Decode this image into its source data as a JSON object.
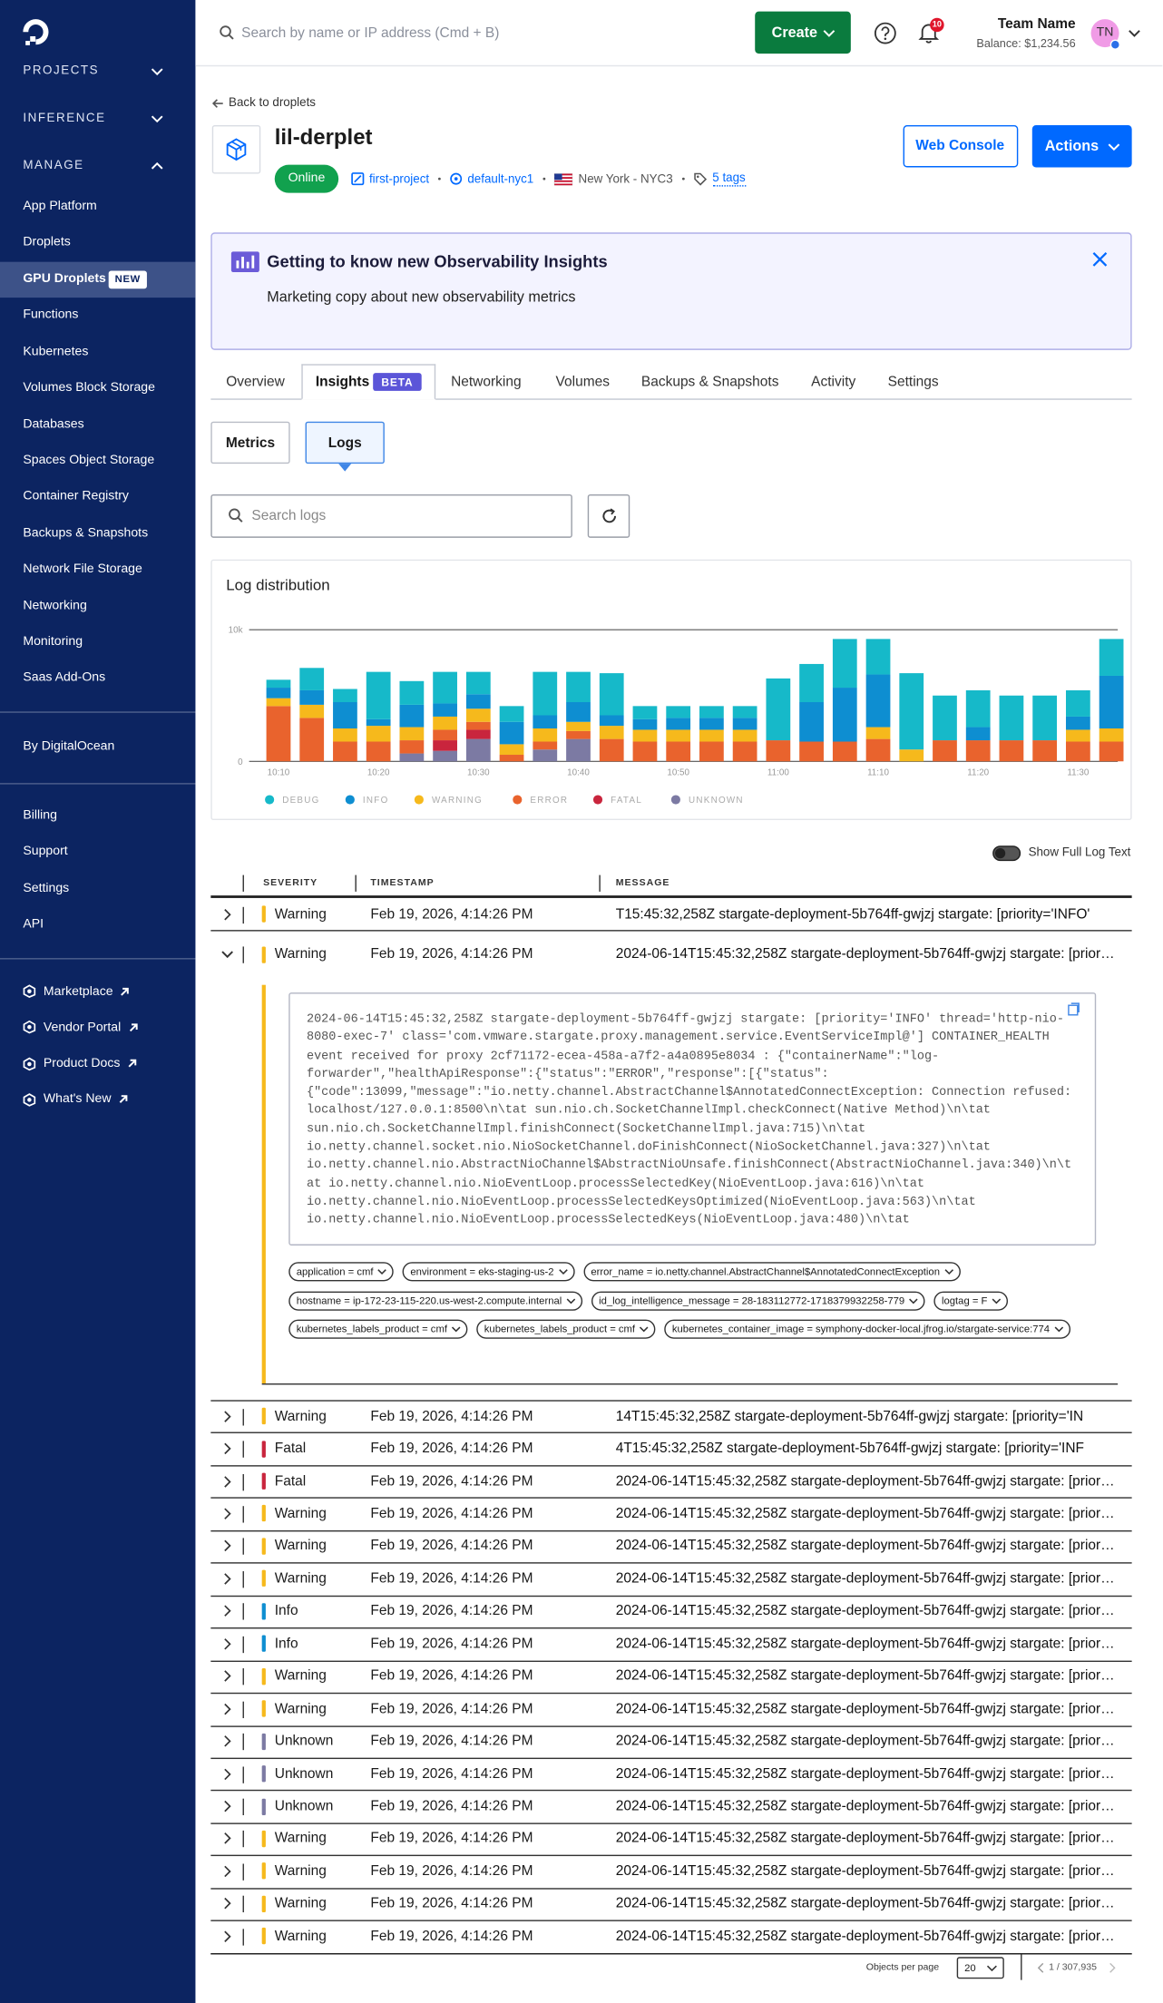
{
  "sidebar": {
    "sections": [
      "PROJECTS",
      "INFERENCE",
      "MANAGE"
    ],
    "manage_items": [
      "App Platform",
      "Droplets",
      "GPU Droplets",
      "Functions",
      "Kubernetes",
      "Volumes Block Storage",
      "Databases",
      "Spaces Object Storage",
      "Container Registry",
      "Backups & Snapshots",
      "Network File Storage",
      "Networking",
      "Monitoring",
      "Saas Add-Ons"
    ],
    "manage_active": 2,
    "new_badge": "NEW",
    "by": "By DigitalOcean",
    "account_items": [
      "Billing",
      "Support",
      "Settings",
      "API"
    ],
    "external_items": [
      "Marketplace",
      "Vendor Portal",
      "Product Docs",
      "What's New"
    ]
  },
  "topbar": {
    "search_placeholder": "Search by name or IP address (Cmd + B)",
    "create": "Create",
    "notifications": "10",
    "team_name": "Team Name",
    "balance": "Balance: $1,234.56",
    "initials": "TN"
  },
  "droplet": {
    "back": "Back to droplets",
    "name": "lil-derplet",
    "status": "Online",
    "project": "first-project",
    "vpc": "default-nyc1",
    "region": "New York - NYC3",
    "tags": "5 tags",
    "web_console": "Web Console",
    "actions": "Actions"
  },
  "banner": {
    "title": "Getting to know new Observability Insights",
    "body": "Marketing copy about new observability metrics"
  },
  "tabs": {
    "items": [
      "Overview",
      "Insights",
      "Networking",
      "Volumes",
      "Backups & Snapshots",
      "Activity",
      "Settings"
    ],
    "active": 1,
    "beta": "BETA"
  },
  "subtabs": {
    "items": [
      "Metrics",
      "Logs"
    ],
    "active": 1
  },
  "search_logs": "Search logs",
  "chart_data": {
    "type": "bar",
    "stacked": true,
    "title": "Log distribution",
    "categories": [
      "10:10",
      null,
      null,
      "10:20",
      null,
      null,
      "10:30",
      null,
      null,
      "10:40",
      null,
      null,
      "10:50",
      null,
      null,
      "11:00",
      null,
      null,
      "11:10",
      null,
      null,
      "11:20",
      null,
      null,
      "11:30",
      null
    ],
    "series": [
      {
        "name": "DEBUG",
        "color": "#16b9c9",
        "values": [
          600,
          1700,
          1000,
          3600,
          1800,
          2400,
          1700,
          1200,
          3300,
          2300,
          3200,
          1000,
          900,
          900,
          900,
          4700,
          2900,
          3700,
          2700,
          5800,
          3400,
          2800,
          3400,
          3400,
          2000,
          2800
        ]
      },
      {
        "name": "INFO",
        "color": "#0e8ed1",
        "values": [
          800,
          1100,
          2000,
          500,
          1700,
          1000,
          1100,
          1700,
          1000,
          1500,
          800,
          800,
          900,
          900,
          900,
          0,
          3000,
          4100,
          4000,
          0,
          0,
          1000,
          0,
          0,
          1000,
          4000
        ]
      },
      {
        "name": "WARNING",
        "color": "#f6b91c",
        "values": [
          600,
          1000,
          1000,
          1200,
          1000,
          1000,
          1000,
          800,
          1000,
          700,
          1000,
          900,
          900,
          900,
          900,
          0,
          0,
          0,
          900,
          900,
          0,
          0,
          0,
          0,
          900,
          1000
        ]
      },
      {
        "name": "ERROR",
        "color": "#e9632d",
        "values": [
          4200,
          3300,
          1500,
          1500,
          1000,
          800,
          600,
          500,
          600,
          600,
          1700,
          1500,
          1500,
          1500,
          1500,
          1600,
          1500,
          1500,
          1700,
          0,
          1600,
          1600,
          1600,
          1600,
          1500,
          1500
        ]
      },
      {
        "name": "FATAL",
        "color": "#c9253d",
        "values": [
          0,
          0,
          0,
          0,
          0,
          800,
          700,
          0,
          0,
          0,
          0,
          0,
          0,
          0,
          0,
          0,
          0,
          0,
          0,
          0,
          0,
          0,
          0,
          0,
          0,
          0
        ]
      },
      {
        "name": "UNKNOWN",
        "color": "#7c7aa3",
        "values": [
          0,
          0,
          0,
          0,
          600,
          800,
          1700,
          0,
          900,
          1700,
          0,
          0,
          0,
          0,
          0,
          0,
          0,
          0,
          0,
          0,
          0,
          0,
          0,
          0,
          0,
          0
        ]
      }
    ],
    "ylim": [
      0,
      10000
    ],
    "yticks": [
      0,
      {
        "value": 10000,
        "label": "10k"
      }
    ],
    "grid": true
  },
  "full_text_toggle": "Show Full Log Text",
  "table": {
    "columns": [
      "SEVERITY",
      "TIMESTAMP",
      "MESSAGE"
    ],
    "severity_colors": {
      "Warning": "#f6b91c",
      "Fatal": "#c9253d",
      "Info": "#0e8ed1",
      "Unknown": "#7c7aa3"
    },
    "rows": [
      {
        "severity": "Warning",
        "timestamp": "Feb 19, 2026, 4:14:26 PM",
        "message": "T15:45:32,258Z stargate-deployment-5b764ff-gwjzj stargate: [priority='INFO'"
      },
      {
        "severity": "Warning",
        "timestamp": "Feb 19, 2026, 4:14:26 PM",
        "message": "2024-06-14T15:45:32,258Z stargate-deployment-5b764ff-gwjzj stargate: [priority='INFO'",
        "detail": {
          "text": "2024-06-14T15:45:32,258Z stargate-deployment-5b764ff-gwjzj stargate: [priority='INFO' thread='http-nio-8080-exec-7' class='com.vmware.stargate.proxy.management.service.EventServiceImpl@'] CONTAINER_HEALTH event received for proxy 2cf71172-ecea-458a-a7f2-a4a0895e8034 : {\"containerName\":\"log-forwarder\",\"healthApiResponse\":{\"status\":\"ERROR\",\"response\":[{\"status\":{\"code\":13099,\"message\":\"io.netty.channel.AbstractChannel$AnnotatedConnectException: Connection refused: localhost/127.0.0.1:8500\\n\\tat sun.nio.ch.SocketChannelImpl.checkConnect(Native Method)\\n\\tat sun.nio.ch.SocketChannelImpl.finishConnect(SocketChannelImpl.java:715)\\n\\tat io.netty.channel.socket.nio.NioSocketChannel.doFinishConnect(NioSocketChannel.java:327)\\n\\tat io.netty.channel.nio.AbstractNioChannel$AbstractNioUnsafe.finishConnect(AbstractNioChannel.java:340)\\n\\tat io.netty.channel.nio.NioEventLoop.processSelectedKey(NioEventLoop.java:616)\\n\\tat io.netty.channel.nio.NioEventLoop.processSelectedKeysOptimized(NioEventLoop.java:563)\\n\\tat io.netty.channel.nio.NioEventLoop.processSelectedKeys(NioEventLoop.java:480)\\n\\tat",
          "tags": [
            "application = cmf",
            "environment = eks-staging-us-2",
            "error_name = io.netty.channel.AbstractChannel$AnnotatedConnectException",
            "hostname = ip-172-23-115-220.us-west-2.compute.internal",
            "id_log_intelligence_message = 28-183112772-1718379932258-779",
            "logtag = F",
            "kubernetes_labels_product = cmf",
            "kubernetes_labels_product = cmf",
            "kubernetes_container_image = symphony-docker-local.jfrog.io/stargate-service:774"
          ]
        }
      },
      {
        "severity": "Warning",
        "timestamp": "Feb 19, 2026, 4:14:26 PM",
        "message": "14T15:45:32,258Z stargate-deployment-5b764ff-gwjzj stargate: [priority='IN"
      },
      {
        "severity": "Fatal",
        "timestamp": "Feb 19, 2026, 4:14:26 PM",
        "message": "4T15:45:32,258Z stargate-deployment-5b764ff-gwjzj stargate: [priority='INF"
      },
      {
        "severity": "Fatal",
        "timestamp": "Feb 19, 2026, 4:14:26 PM",
        "message": "2024-06-14T15:45:32,258Z stargate-deployment-5b764ff-gwjzj stargate: [priority='INFO'"
      },
      {
        "severity": "Warning",
        "timestamp": "Feb 19, 2026, 4:14:26 PM",
        "message": "2024-06-14T15:45:32,258Z stargate-deployment-5b764ff-gwjzj stargate: [priority='INFO'"
      },
      {
        "severity": "Warning",
        "timestamp": "Feb 19, 2026, 4:14:26 PM",
        "message": "2024-06-14T15:45:32,258Z stargate-deployment-5b764ff-gwjzj stargate: [priority='INFO'"
      },
      {
        "severity": "Warning",
        "timestamp": "Feb 19, 2026, 4:14:26 PM",
        "message": "2024-06-14T15:45:32,258Z stargate-deployment-5b764ff-gwjzj stargate: [priority='INFO'"
      },
      {
        "severity": "Info",
        "timestamp": "Feb 19, 2026, 4:14:26 PM",
        "message": "2024-06-14T15:45:32,258Z stargate-deployment-5b764ff-gwjzj stargate: [priority='INFO'"
      },
      {
        "severity": "Info",
        "timestamp": "Feb 19, 2026, 4:14:26 PM",
        "message": "2024-06-14T15:45:32,258Z stargate-deployment-5b764ff-gwjzj stargate: [priority='INFO'"
      },
      {
        "severity": "Warning",
        "timestamp": "Feb 19, 2026, 4:14:26 PM",
        "message": "2024-06-14T15:45:32,258Z stargate-deployment-5b764ff-gwjzj stargate: [priority='INFO'"
      },
      {
        "severity": "Warning",
        "timestamp": "Feb 19, 2026, 4:14:26 PM",
        "message": "2024-06-14T15:45:32,258Z stargate-deployment-5b764ff-gwjzj stargate: [priority='INFO'"
      },
      {
        "severity": "Unknown",
        "timestamp": "Feb 19, 2026, 4:14:26 PM",
        "message": "2024-06-14T15:45:32,258Z stargate-deployment-5b764ff-gwjzj stargate: [priority='INFO'"
      },
      {
        "severity": "Unknown",
        "timestamp": "Feb 19, 2026, 4:14:26 PM",
        "message": "2024-06-14T15:45:32,258Z stargate-deployment-5b764ff-gwjzj stargate: [priority='INFO'"
      },
      {
        "severity": "Unknown",
        "timestamp": "Feb 19, 2026, 4:14:26 PM",
        "message": "2024-06-14T15:45:32,258Z stargate-deployment-5b764ff-gwjzj stargate: [priority='INFO'"
      },
      {
        "severity": "Warning",
        "timestamp": "Feb 19, 2026, 4:14:26 PM",
        "message": "2024-06-14T15:45:32,258Z stargate-deployment-5b764ff-gwjzj stargate: [priority='INFO'"
      },
      {
        "severity": "Warning",
        "timestamp": "Feb 19, 2026, 4:14:26 PM",
        "message": "2024-06-14T15:45:32,258Z stargate-deployment-5b764ff-gwjzj stargate: [priority='INFO'"
      },
      {
        "severity": "Warning",
        "timestamp": "Feb 19, 2026, 4:14:26 PM",
        "message": "2024-06-14T15:45:32,258Z stargate-deployment-5b764ff-gwjzj stargate: [priority='INFO'"
      },
      {
        "severity": "Warning",
        "timestamp": "Feb 19, 2026, 4:14:26 PM",
        "message": "2024-06-14T15:45:32,258Z stargate-deployment-5b764ff-gwjzj stargate: [priority='INFO'"
      }
    ]
  },
  "pagination": {
    "per_page_label": "Objects per page",
    "per_page": "20",
    "pages": "1 / 307,935"
  }
}
